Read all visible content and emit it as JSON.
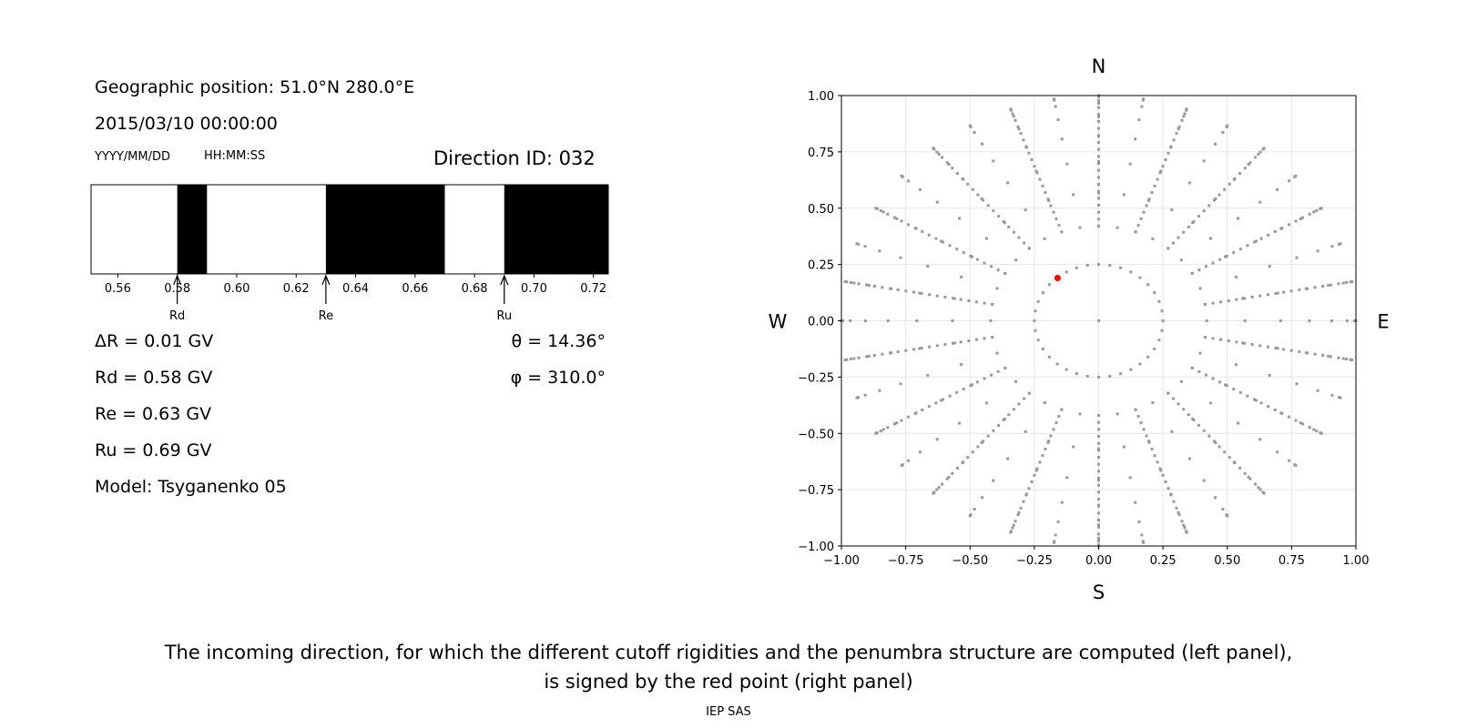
{
  "left_panel": {
    "position_line": "Geographic position: 51.0°N 280.0°E",
    "datetime_line": "2015/03/10 00:00:00",
    "date_format_label": "YYYY/MM/DD",
    "time_format_label": "HH:MM:SS",
    "direction_label": "Direction ID: 032",
    "delta_r_line": "ΔR = 0.01 GV",
    "rd_line": "Rd = 0.58 GV",
    "re_line": "Re = 0.63 GV",
    "ru_line": "Ru = 0.69 GV",
    "model_line": "Model: Tsyganenko 05",
    "theta_line": "θ = 14.36°",
    "phi_line": "φ = 310.0°"
  },
  "chart_data": [
    {
      "type": "bar",
      "xlim": [
        0.551,
        0.725
      ],
      "xticks": [
        "0.56",
        "0.58",
        "0.60",
        "0.62",
        "0.64",
        "0.66",
        "0.68",
        "0.70",
        "0.72"
      ],
      "xtick_values": [
        0.56,
        0.58,
        0.6,
        0.62,
        0.64,
        0.66,
        0.68,
        0.7,
        0.72
      ],
      "forbidden_intervals": [
        [
          0.58,
          0.59
        ],
        [
          0.63,
          0.67
        ],
        [
          0.69,
          0.725
        ]
      ],
      "allowed_color": "#ffffff",
      "forbidden_color": "#000000",
      "markers": [
        {
          "label": "Rd",
          "value": 0.58
        },
        {
          "label": "Re",
          "value": 0.63
        },
        {
          "label": "Ru",
          "value": 0.69
        }
      ]
    },
    {
      "type": "scatter",
      "xlim": [
        -1.0,
        1.0
      ],
      "ylim": [
        -1.0,
        1.0
      ],
      "xticks": [
        "−1.00",
        "−0.75",
        "−0.50",
        "−0.25",
        "0.00",
        "0.25",
        "0.50",
        "0.75",
        "1.00"
      ],
      "yticks": [
        "1.00",
        "0.75",
        "0.50",
        "0.25",
        "0.00",
        "−0.25",
        "−0.50",
        "−0.75",
        "−1.00"
      ],
      "tick_values": [
        -1.0,
        -0.75,
        -0.5,
        -0.25,
        0.0,
        0.25,
        0.5,
        0.75,
        1.0
      ],
      "grid": true,
      "compass": {
        "north": "N",
        "south": "S",
        "west": "W",
        "east": "E"
      },
      "grid_points": {
        "color": "#999999",
        "radii": [
          0.0,
          0.25,
          0.42,
          0.5684,
          0.7071,
          0.8192,
          0.9063,
          0.9659,
          0.9945,
          1.0
        ],
        "azimuth_step_deg": 10,
        "rays_every_deg": 20,
        "ray_radial_step": 0.031
      },
      "highlight_point": {
        "x": -0.16,
        "y": 0.19,
        "color": "#ff0000"
      }
    }
  ],
  "caption_line1": "The incoming direction, for which the different cutoff rigidities and the penumbra structure are computed (left panel),",
  "caption_line2": "is signed by the red point (right panel)",
  "footer": "IEP SAS"
}
